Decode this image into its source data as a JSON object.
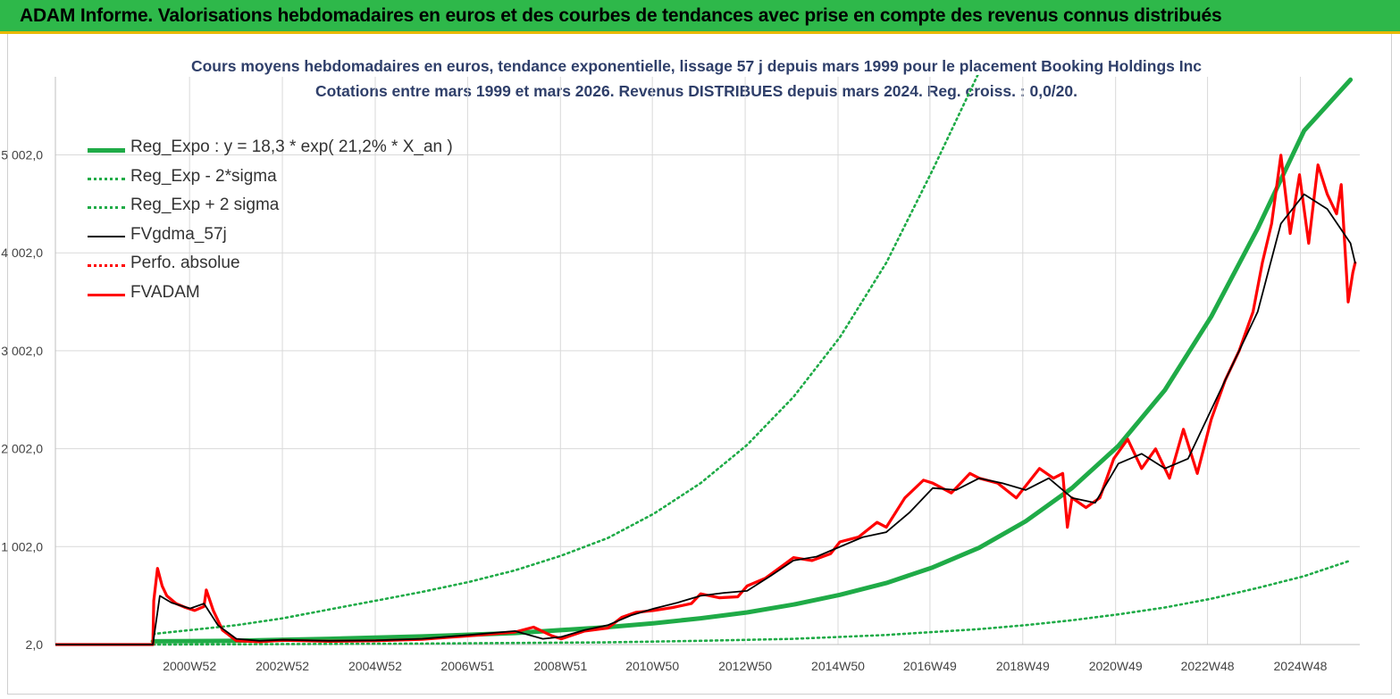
{
  "banner_title": "ADAM Informe. Valorisations hebdomadaires en euros et des courbes de tendances avec prise en compte des revenus connus distribués",
  "chart_data": {
    "type": "line",
    "title": "Cours moyens hebdomadaires en euros, tendance exponentielle, lissage 57 j depuis mars 1999 pour le placement Booking Holdings Inc",
    "subtitle": "Cotations entre mars 1999 et mars 2026. Revenus DISTRIBUES depuis mars 2024. Reg. croiss. : 0,0/20.",
    "ylim": [
      2,
      5800
    ],
    "ytick_values": [
      2,
      1002,
      2002,
      3002,
      4002,
      5002
    ],
    "ytick_labels": [
      "2,0",
      "1 002,0",
      "2 002,0",
      "3 002,0",
      "4 002,0",
      "5 002,0"
    ],
    "xlim": [
      1998.1,
      2026.2
    ],
    "xtick_values": [
      2000.99,
      2002.99,
      2004.99,
      2006.98,
      2008.98,
      2010.96,
      2012.96,
      2014.96,
      2016.94,
      2018.94,
      2020.94,
      2022.92,
      2024.92
    ],
    "xtick_labels": [
      "2000W52",
      "2002W52",
      "2004W52",
      "2006W51",
      "2008W51",
      "2010W50",
      "2012W50",
      "2014W50",
      "2016W49",
      "2018W49",
      "2020W49",
      "2022W48",
      "2024W48"
    ],
    "grid": true,
    "legend_position": "top-left",
    "series": [
      {
        "name": "Reg_Expo : y = 18,3 * exp( 21,2% *  X_an )",
        "color": "#1fab47",
        "style": "solid-thick",
        "x": [
          2000.2,
          2002,
          2004,
          2006,
          2008,
          2010,
          2011,
          2012,
          2013,
          2014,
          2015,
          2016,
          2017,
          2018,
          2019,
          2020,
          2021,
          2022,
          2023,
          2024,
          2025,
          2026
        ],
        "y": [
          35,
          40,
          60,
          85,
          120,
          180,
          220,
          270,
          330,
          410,
          510,
          630,
          790,
          990,
          1260,
          1600,
          2030,
          2600,
          3350,
          4250,
          5250,
          5770
        ]
      },
      {
        "name": "Reg_Exp - 2*sigma",
        "color": "#1fab47",
        "style": "dotted",
        "x": [
          2000.2,
          2002,
          2004,
          2006,
          2008,
          2010,
          2012,
          2014,
          2016,
          2018,
          2019,
          2020,
          2021,
          2022,
          2023,
          2024,
          2025,
          2026
        ],
        "y": [
          2,
          5,
          8,
          12,
          18,
          25,
          40,
          60,
          100,
          160,
          200,
          250,
          310,
          380,
          470,
          580,
          700,
          860
        ]
      },
      {
        "name": "Reg_Exp + 2 sigma",
        "color": "#1fab47",
        "style": "dotted",
        "x": [
          2000.2,
          2001,
          2002,
          2003,
          2004,
          2005,
          2006,
          2007,
          2008,
          2009,
          2010,
          2011,
          2012,
          2013,
          2014,
          2015,
          2016,
          2017,
          2018,
          2018.6
        ],
        "y": [
          110,
          150,
          200,
          270,
          360,
          450,
          540,
          640,
          760,
          910,
          1090,
          1340,
          1650,
          2040,
          2530,
          3140,
          3900,
          4850,
          5850,
          6350
        ]
      },
      {
        "name": "FVgdma_57j",
        "color": "#000000",
        "style": "solid",
        "x": [
          1998.1,
          2000.2,
          2000.35,
          2000.6,
          2001,
          2001.3,
          2001.6,
          2002,
          2002.5,
          2003,
          2004,
          2005,
          2006,
          2007,
          2008,
          2008.6,
          2009,
          2009.5,
          2010,
          2010.5,
          2011,
          2011.5,
          2012,
          2012.5,
          2013,
          2013.5,
          2014,
          2014.5,
          2015,
          2015.5,
          2016,
          2016.5,
          2017,
          2017.5,
          2018,
          2018.5,
          2019,
          2019.5,
          2020,
          2020.5,
          2021,
          2021.5,
          2022,
          2022.5,
          2023,
          2023.5,
          2024,
          2024.5,
          2025,
          2025.5,
          2026,
          2026.1
        ],
        "y": [
          2,
          2,
          500,
          430,
          370,
          420,
          200,
          60,
          40,
          50,
          40,
          45,
          60,
          100,
          140,
          60,
          80,
          150,
          200,
          300,
          370,
          430,
          500,
          530,
          550,
          700,
          860,
          900,
          1000,
          1100,
          1150,
          1350,
          1600,
          1580,
          1700,
          1650,
          1580,
          1700,
          1500,
          1450,
          1850,
          1950,
          1800,
          1900,
          2400,
          2900,
          3400,
          4300,
          4600,
          4450,
          4100,
          3900
        ]
      },
      {
        "name": "Perfo. absolue",
        "color": "#ff0000",
        "style": "dotted",
        "x": [
          1998.1,
          2000.2
        ],
        "y": [
          2,
          2
        ]
      },
      {
        "name": "FVADAM",
        "color": "#ff0000",
        "style": "solid-thick",
        "x": [
          1998.1,
          2000.2,
          2000.22,
          2000.3,
          2000.4,
          2000.5,
          2000.7,
          2000.9,
          2001.1,
          2001.3,
          2001.35,
          2001.5,
          2001.7,
          2002,
          2002.5,
          2003,
          2004,
          2005,
          2006,
          2007,
          2008,
          2008.4,
          2008.8,
          2009,
          2009.5,
          2010,
          2010.3,
          2010.6,
          2011,
          2011.4,
          2011.8,
          2012,
          2012.4,
          2012.8,
          2013,
          2013.4,
          2013.8,
          2014,
          2014.4,
          2014.8,
          2015,
          2015.4,
          2015.8,
          2016,
          2016.4,
          2016.8,
          2017,
          2017.4,
          2017.8,
          2018,
          2018.4,
          2018.8,
          2019,
          2019.3,
          2019.6,
          2019.8,
          2019.9,
          2020,
          2020.3,
          2020.6,
          2020.9,
          2021.2,
          2021.5,
          2021.8,
          2022.1,
          2022.4,
          2022.7,
          2023,
          2023.3,
          2023.6,
          2023.9,
          2024.1,
          2024.3,
          2024.5,
          2024.7,
          2024.9,
          2025.1,
          2025.3,
          2025.5,
          2025.7,
          2025.8,
          2025.95,
          2026.05,
          2026.1
        ],
        "y": [
          2,
          2,
          450,
          780,
          600,
          500,
          420,
          380,
          350,
          390,
          560,
          350,
          150,
          40,
          30,
          45,
          35,
          40,
          55,
          90,
          130,
          180,
          90,
          60,
          140,
          170,
          280,
          330,
          350,
          380,
          420,
          520,
          480,
          490,
          600,
          680,
          820,
          890,
          860,
          930,
          1050,
          1100,
          1250,
          1200,
          1500,
          1680,
          1650,
          1550,
          1750,
          1700,
          1650,
          1500,
          1620,
          1800,
          1700,
          1750,
          1200,
          1500,
          1400,
          1500,
          1900,
          2100,
          1800,
          2000,
          1700,
          2200,
          1750,
          2300,
          2700,
          3000,
          3400,
          3900,
          4300,
          5000,
          4200,
          4800,
          4100,
          4900,
          4600,
          4400,
          4700,
          3500,
          3800,
          3900
        ]
      }
    ]
  }
}
